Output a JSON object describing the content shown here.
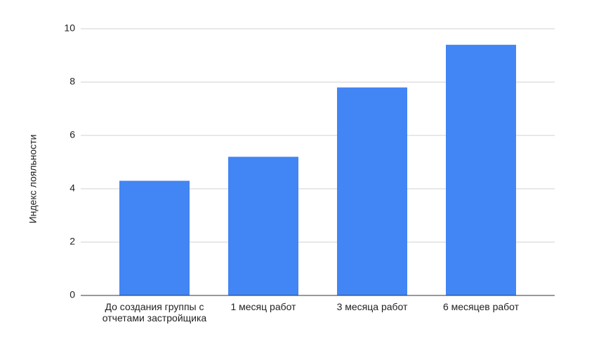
{
  "chart_data": {
    "type": "bar",
    "y_label": "Индекс лояльности",
    "categories": [
      "До создания группы с отчетами застройщика",
      "1 месяц работ",
      "3 месяца работ",
      "6 месяцев работ"
    ],
    "values": [
      4.3,
      5.2,
      7.8,
      9.4
    ],
    "color": "#4285f4",
    "ylim": [
      0,
      10
    ],
    "yticks": [
      0,
      2,
      4,
      6,
      8,
      10
    ],
    "grid": true
  }
}
